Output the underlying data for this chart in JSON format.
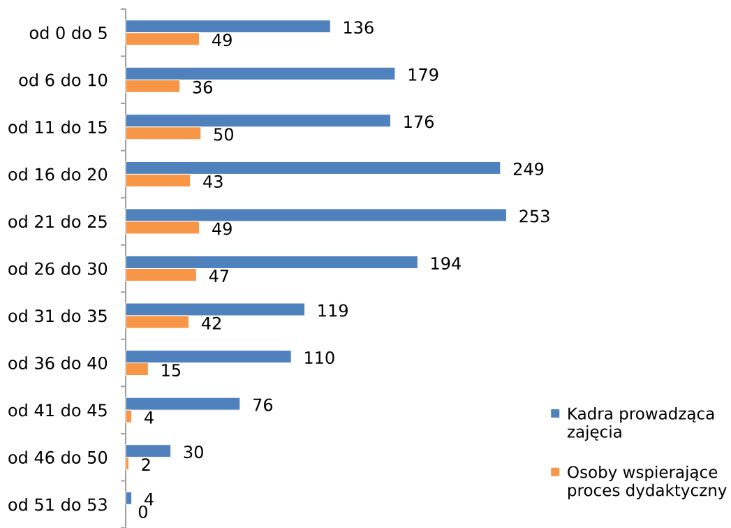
{
  "chart_data": {
    "type": "bar",
    "orientation": "horizontal",
    "categories": [
      "od 0 do 5",
      "od 6 do 10",
      "od 11 do 15",
      "od 16 do 20",
      "od 21 do 25",
      "od 26 do 30",
      "od 31 do 35",
      "od 36 do 40",
      "od 41 do 45",
      "od 46 do 50",
      "od 51 do 53"
    ],
    "series": [
      {
        "name": "Kadra prowadząca zajęcia",
        "color": "#4f81bd",
        "values": [
          136,
          179,
          176,
          249,
          253,
          194,
          119,
          110,
          76,
          30,
          4
        ]
      },
      {
        "name": "Osoby wspierające proces dydaktyczny",
        "color": "#f79646",
        "values": [
          49,
          36,
          50,
          43,
          49,
          47,
          42,
          15,
          4,
          2,
          0
        ]
      }
    ],
    "data_labels": true,
    "legend": "bottom right",
    "tick_labels": "y"
  }
}
